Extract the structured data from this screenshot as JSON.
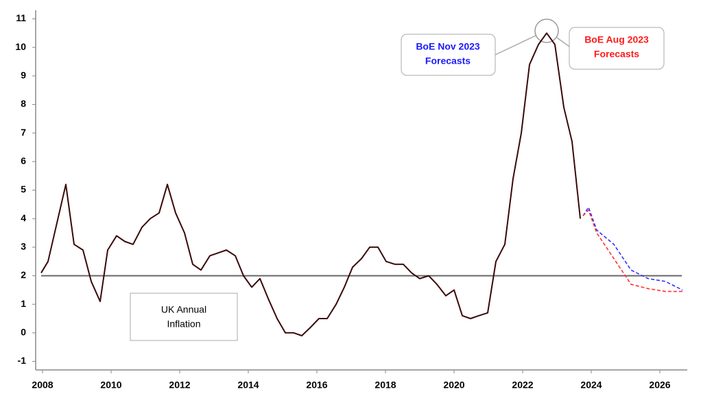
{
  "chart_data": {
    "type": "line",
    "xlim": [
      2007.8,
      2026.8
    ],
    "xticks": [
      2008,
      2010,
      2012,
      2014,
      2016,
      2018,
      2020,
      2022,
      2024,
      2026
    ],
    "ylim": [
      -1.3,
      11.3
    ],
    "yticks": [
      -1,
      0,
      1,
      2,
      3,
      4,
      5,
      6,
      7,
      8,
      9,
      10,
      11
    ],
    "grid": false,
    "reference_line": 2,
    "reference_color": "#666666",
    "series": [
      {
        "color": "#3a0808",
        "dashed": false,
        "x": [
          2007.96,
          2008.16,
          2008.68,
          2008.92,
          2009.18,
          2009.42,
          2009.68,
          2009.9,
          2010.16,
          2010.4,
          2010.64,
          2010.9,
          2011.14,
          2011.4,
          2011.64,
          2011.88,
          2012.14,
          2012.38,
          2012.62,
          2012.88,
          2013.12,
          2013.36,
          2013.62,
          2013.86,
          2014.1,
          2014.34,
          2014.58,
          2014.84,
          2015.08,
          2015.32,
          2015.56,
          2015.82,
          2016.06,
          2016.3,
          2016.56,
          2016.8,
          2017.04,
          2017.3,
          2017.54,
          2017.78,
          2018.02,
          2018.28,
          2018.52,
          2018.76,
          2019.0,
          2019.26,
          2019.5,
          2019.76,
          2020.0,
          2020.24,
          2020.48,
          2020.72,
          2020.98,
          2021.22,
          2021.48,
          2021.72,
          2021.96,
          2022.2,
          2022.46,
          2022.7,
          2022.94,
          2023.2,
          2023.44,
          2023.68
        ],
        "values": [
          2.1,
          2.5,
          5.2,
          3.1,
          2.9,
          1.8,
          1.1,
          2.9,
          3.4,
          3.2,
          3.1,
          3.7,
          4.0,
          4.2,
          5.2,
          4.2,
          3.5,
          2.4,
          2.2,
          2.7,
          2.8,
          2.9,
          2.7,
          2.0,
          1.6,
          1.9,
          1.2,
          0.5,
          0.0,
          0.0,
          -0.1,
          0.2,
          0.5,
          0.5,
          1.0,
          1.6,
          2.3,
          2.6,
          3.0,
          3.0,
          2.5,
          2.4,
          2.4,
          2.1,
          1.9,
          2.0,
          1.7,
          1.3,
          1.5,
          0.6,
          0.5,
          0.6,
          0.7,
          2.5,
          3.1,
          5.4,
          7.0,
          9.4,
          10.1,
          10.5,
          10.1,
          7.9,
          6.7,
          4.0
        ]
      },
      {
        "color": "#3030ff",
        "dashed": true,
        "x": [
          2023.76,
          2023.92,
          2024.16,
          2024.66,
          2025.16,
          2025.66,
          2026.16,
          2026.66
        ],
        "values": [
          4.1,
          4.4,
          3.6,
          3.1,
          2.2,
          1.9,
          1.8,
          1.5
        ]
      },
      {
        "color": "#ff3030",
        "dashed": true,
        "x": [
          2023.76,
          2023.92,
          2024.16,
          2024.66,
          2025.16,
          2025.66,
          2026.16,
          2026.66
        ],
        "values": [
          4.1,
          4.3,
          3.5,
          2.6,
          1.7,
          1.55,
          1.45,
          1.45
        ]
      }
    ],
    "annotations": [
      {
        "lines": [
          "UK Annual",
          "Inflation"
        ],
        "color": "#000000"
      },
      {
        "lines": [
          "BoE Nov 2023",
          "Forecasts"
        ],
        "color": "#1a1aff"
      },
      {
        "lines": [
          "BoE Aug 2023",
          "Forecasts"
        ],
        "color": "#ff1a1a"
      }
    ]
  }
}
